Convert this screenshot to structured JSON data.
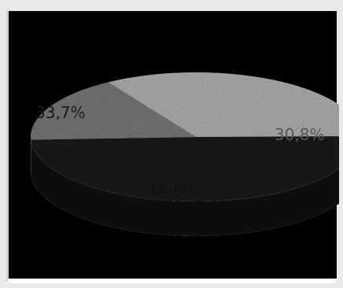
{
  "chart_data": {
    "type": "pie",
    "title": "",
    "slices": [
      {
        "value": 33.7,
        "label": "33,7%",
        "color": "#b3b3b3"
      },
      {
        "value": 49.5,
        "label": "",
        "color": "#1c1c1c"
      },
      {
        "value": 16.8,
        "label": "16,8%",
        "color": "#7a7a7a"
      }
    ],
    "partial_label": "30,8%",
    "style": "3d",
    "legend": "none"
  }
}
